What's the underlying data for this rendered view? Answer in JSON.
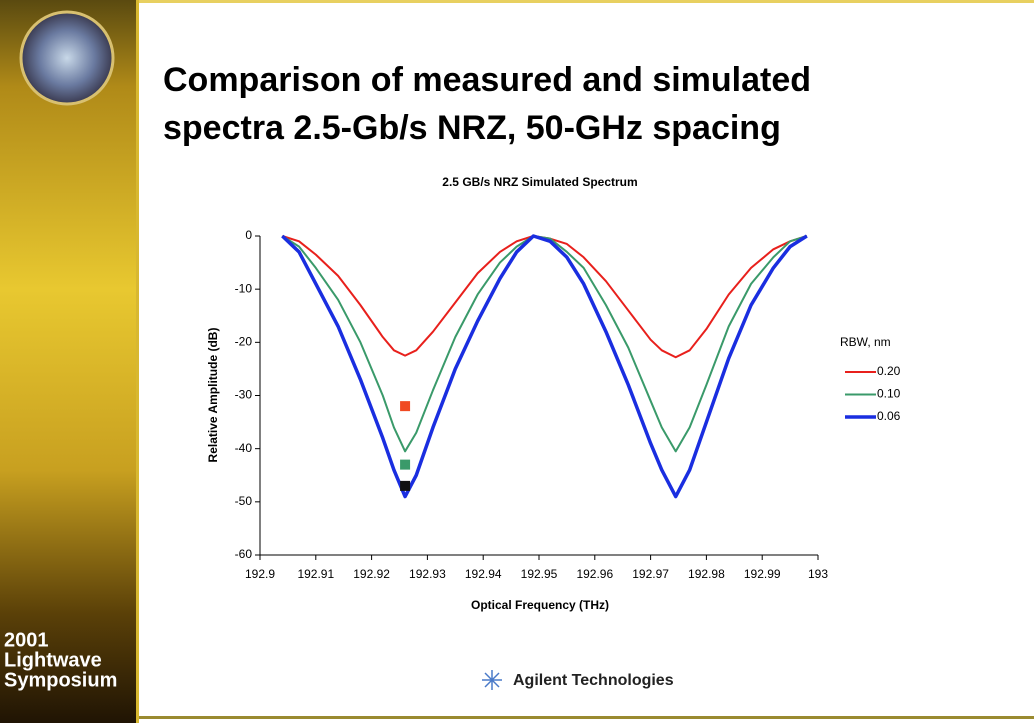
{
  "header": {
    "title_lines": [
      "Comparison of measured and simulated",
      "spectra 2.5-Gb/s NRZ, 50-GHz spacing"
    ]
  },
  "sidebar": {
    "lines": [
      "2001",
      "Lightwave",
      "Symposium"
    ]
  },
  "footer": {
    "brand": "Agilent Technologies"
  },
  "chart_data": {
    "type": "line",
    "title": "2.5 GB/s NRZ Simulated Spectrum",
    "xlabel": "Optical  Frequency (THz)",
    "ylabel": "Relative Amplitude (dB)",
    "legend_title": "RBW, nm",
    "legend": "right",
    "xlim": [
      192.9,
      193
    ],
    "ylim": [
      -60,
      0
    ],
    "xticks": [
      192.9,
      192.91,
      192.92,
      192.93,
      192.94,
      192.95,
      192.96,
      192.97,
      192.98,
      192.99,
      193
    ],
    "yticks": [
      0,
      -10,
      -20,
      -30,
      -40,
      -50,
      -60
    ],
    "x": [
      192.904,
      192.907,
      192.91,
      192.914,
      192.918,
      192.922,
      192.924,
      192.926,
      192.928,
      192.931,
      192.935,
      192.939,
      192.943,
      192.946,
      192.949,
      192.952,
      192.955,
      192.958,
      192.962,
      192.966,
      192.97,
      192.972,
      192.9745,
      192.977,
      192.98,
      192.984,
      192.988,
      192.992,
      192.995,
      192.998
    ],
    "series": [
      {
        "name": "0.20",
        "color": "#e8201c",
        "values": [
          0,
          -1,
          -3.5,
          -7.5,
          -13,
          -19,
          -21.5,
          -22.5,
          -21.5,
          -18,
          -12.5,
          -7,
          -3,
          -1,
          0,
          -0.5,
          -1.5,
          -4,
          -8.5,
          -14,
          -19.5,
          -21.5,
          -22.8,
          -21.5,
          -17.5,
          -11,
          -6,
          -2.5,
          -1,
          0
        ]
      },
      {
        "name": "0.10",
        "color": "#3a9a6a",
        "values": [
          0,
          -2,
          -6,
          -12,
          -20,
          -30,
          -36,
          -40.5,
          -37,
          -29,
          -19,
          -11,
          -5,
          -2,
          0,
          -0.5,
          -3,
          -6,
          -13,
          -21,
          -31,
          -36,
          -40.5,
          -36,
          -28,
          -17,
          -9,
          -4,
          -1,
          0
        ]
      },
      {
        "name": "0.06",
        "color": "#1a2ee0",
        "values": [
          0,
          -3,
          -9,
          -17,
          -27,
          -38,
          -44,
          -49,
          -45,
          -36,
          -25,
          -16,
          -8,
          -3,
          0,
          -1,
          -4,
          -9,
          -18,
          -28,
          -39,
          -44,
          -49,
          -44,
          -35,
          -23,
          -13,
          -6,
          -2,
          0
        ]
      }
    ],
    "points": [
      {
        "x": 192.926,
        "y": -32,
        "color": "#f04a22"
      },
      {
        "x": 192.926,
        "y": -43,
        "color": "#3a9a6a"
      },
      {
        "x": 192.926,
        "y": -47,
        "color": "#111111"
      }
    ]
  }
}
